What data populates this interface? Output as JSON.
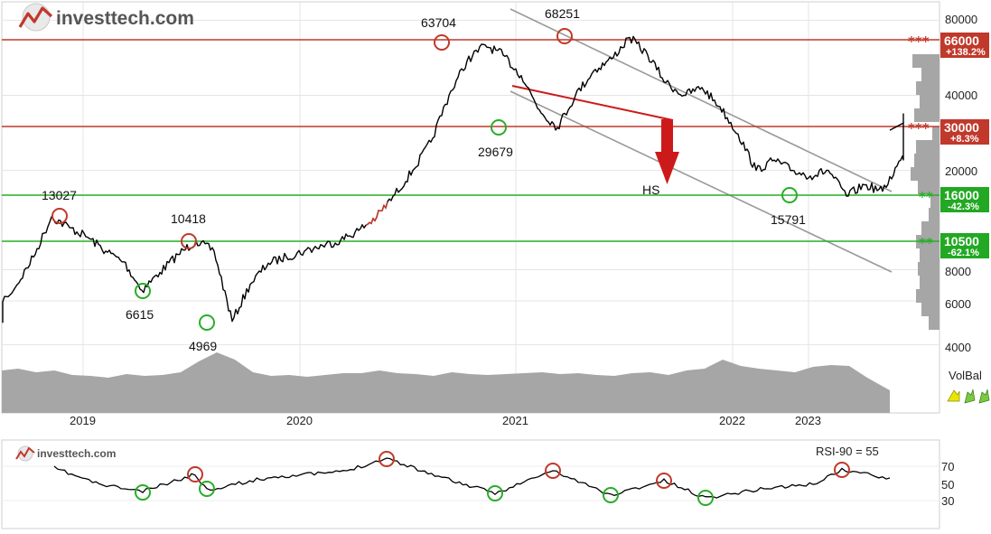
{
  "brand": {
    "name": "investtech.com",
    "name_small": "investtech.com"
  },
  "colors": {
    "price_line": "#000000",
    "price_line_highlight": "#c0392b",
    "resistance": "#c0392b",
    "support": "#27ae27",
    "channel": "#999999",
    "volume_fill": "#a6a6a6",
    "hs_arrow": "#cc1a1a",
    "volbal_arrow": "#e6e600",
    "volbal_arrow_green": "#7ac943"
  },
  "volbal_label": "VolBal",
  "hs_label": "HS",
  "rsi_label": "RSI-90 = 55",
  "chart_data": [
    {
      "type": "line",
      "scale": "log",
      "x_ticks": [
        "2019",
        "2020",
        "2021",
        "2022",
        "2023"
      ],
      "y_ticks": [
        "80000",
        "40000",
        "20000",
        "8000",
        "6000",
        "4000"
      ],
      "ylim": [
        4000,
        80000
      ],
      "series": [
        {
          "values_approx": [
            [
              "2018-08",
              4900
            ],
            [
              "2018-10",
              6800
            ],
            [
              "2018-11",
              9000
            ],
            [
              "2018-12",
              13027
            ],
            [
              "2019-01",
              11800
            ],
            [
              "2019-02",
              10800
            ],
            [
              "2019-03",
              9500
            ],
            [
              "2019-04",
              8600
            ],
            [
              "2019-05",
              6615
            ],
            [
              "2019-06",
              7800
            ],
            [
              "2019-07",
              9200
            ],
            [
              "2019-08",
              10418
            ],
            [
              "2019-09",
              9500
            ],
            [
              "2019-10",
              4969
            ],
            [
              "2019-11",
              7000
            ],
            [
              "2019-12",
              8500
            ],
            [
              "2020-01",
              9000
            ],
            [
              "2020-02",
              9500
            ],
            [
              "2020-03",
              10000
            ],
            [
              "2020-04",
              10500
            ],
            [
              "2020-05",
              11500
            ],
            [
              "2020-06",
              13000
            ],
            [
              "2020-07",
              16000
            ],
            [
              "2020-08",
              20000
            ],
            [
              "2020-09",
              26000
            ],
            [
              "2020-10",
              40000
            ],
            [
              "2020-11",
              55000
            ],
            [
              "2020-12",
              63704
            ],
            [
              "2021-01",
              58000
            ],
            [
              "2021-02",
              48000
            ],
            [
              "2021-03",
              35000
            ],
            [
              "2021-04",
              29679
            ],
            [
              "2021-05",
              40000
            ],
            [
              "2021-06",
              50000
            ],
            [
              "2021-07",
              56000
            ],
            [
              "2021-08",
              68251
            ],
            [
              "2021-09",
              58000
            ],
            [
              "2021-10",
              45000
            ],
            [
              "2021-11",
              40000
            ],
            [
              "2021-12",
              43000
            ],
            [
              "2022-01",
              36000
            ],
            [
              "2022-02",
              28000
            ],
            [
              "2022-03",
              20000
            ],
            [
              "2022-04",
              22000
            ],
            [
              "2022-05",
              20000
            ],
            [
              "2022-06",
              19000
            ],
            [
              "2022-07",
              20000
            ],
            [
              "2022-08",
              15791
            ],
            [
              "2022-09",
              17500
            ],
            [
              "2022-10",
              16500
            ],
            [
              "2022-11",
              22000
            ],
            [
              "2022-12",
              26000
            ],
            [
              "2023-01",
              30000
            ],
            [
              "2023-02",
              33000
            ],
            [
              "2023-03",
              31000
            ]
          ]
        }
      ],
      "annotations": [
        {
          "label": "13027",
          "value": 13027,
          "kind": "top"
        },
        {
          "label": "10418",
          "value": 10418,
          "kind": "top"
        },
        {
          "label": "6615",
          "value": 6615,
          "kind": "bottom"
        },
        {
          "label": "4969",
          "value": 4969,
          "kind": "bottom"
        },
        {
          "label": "63704",
          "value": 63704,
          "kind": "top"
        },
        {
          "label": "29679",
          "value": 29679,
          "kind": "bottom"
        },
        {
          "label": "68251",
          "value": 68251,
          "kind": "top"
        },
        {
          "label": "15791",
          "value": 15791,
          "kind": "bottom"
        }
      ],
      "levels": [
        {
          "value": "66000",
          "change": "+138.2%",
          "kind": "resistance",
          "stars": "***"
        },
        {
          "value": "30000",
          "change": "+8.3%",
          "kind": "resistance",
          "stars": "***"
        },
        {
          "value": "16000",
          "change": "-42.3%",
          "kind": "support",
          "stars": "**"
        },
        {
          "value": "10500",
          "change": "-62.1%",
          "kind": "support",
          "stars": "**"
        }
      ]
    },
    {
      "type": "line",
      "name": "RSI-90",
      "y_ticks": [
        "70",
        "50",
        "30"
      ],
      "ylim": [
        20,
        80
      ],
      "current": 55
    }
  ]
}
